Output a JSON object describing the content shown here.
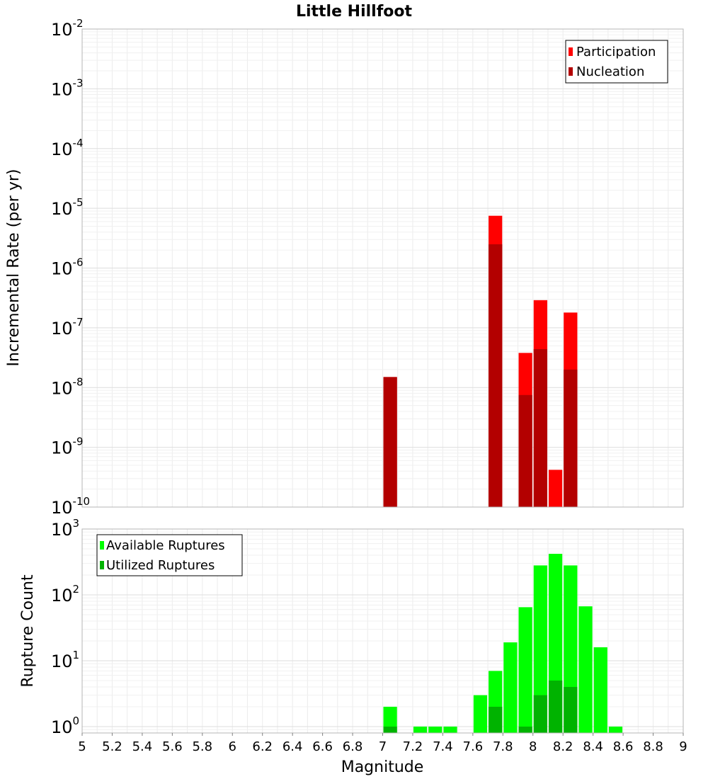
{
  "chart_data": [
    {
      "type": "bar",
      "title": "Little Hillfoot",
      "ylabel": "Incremental Rate (per yr)",
      "yscale": "log",
      "ylim": [
        1e-10,
        0.01
      ],
      "xlim": [
        5,
        9
      ],
      "bar_width": 0.1,
      "y_ticks": [
        {
          "base": "10",
          "exp": "-2"
        },
        {
          "base": "10",
          "exp": "-3"
        },
        {
          "base": "10",
          "exp": "-4"
        },
        {
          "base": "10",
          "exp": "-5"
        },
        {
          "base": "10",
          "exp": "-6"
        },
        {
          "base": "10",
          "exp": "-7"
        },
        {
          "base": "10",
          "exp": "-8"
        },
        {
          "base": "10",
          "exp": "-9"
        },
        {
          "base": "10",
          "exp": "-10"
        }
      ],
      "legend": {
        "position": "top-right"
      },
      "series": [
        {
          "name": "Participation",
          "color": "#ff0000",
          "x": [
            7.05,
            7.75,
            7.95,
            8.05,
            8.15,
            8.25
          ],
          "values": [
            1.5e-08,
            7.5e-06,
            3.8e-08,
            2.9e-07,
            4.2e-10,
            1.8e-07
          ]
        },
        {
          "name": "Nucleation",
          "color": "#b30000",
          "x": [
            7.05,
            7.75,
            7.95,
            8.05,
            8.25
          ],
          "values": [
            1.5e-08,
            2.5e-06,
            7.5e-09,
            4.4e-08,
            2e-08
          ]
        }
      ]
    },
    {
      "type": "bar",
      "xlabel": "Magnitude",
      "ylabel": "Rupture Count",
      "yscale": "log",
      "ylim": [
        0.8,
        1000
      ],
      "xlim": [
        5,
        9
      ],
      "bar_width": 0.1,
      "x_ticks": [
        "5",
        "5.2",
        "5.4",
        "5.6",
        "5.8",
        "6",
        "6.2",
        "6.4",
        "6.6",
        "6.8",
        "7",
        "7.2",
        "7.4",
        "7.6",
        "7.8",
        "8",
        "8.2",
        "8.4",
        "8.6",
        "8.8",
        "9"
      ],
      "y_ticks": [
        {
          "base": "10",
          "exp": "3"
        },
        {
          "base": "10",
          "exp": "2"
        },
        {
          "base": "10",
          "exp": "1"
        },
        {
          "base": "10",
          "exp": "0"
        }
      ],
      "legend": {
        "position": "top-left"
      },
      "series": [
        {
          "name": "Available Ruptures",
          "color": "#00ff00",
          "x": [
            7.05,
            7.25,
            7.35,
            7.45,
            7.65,
            7.75,
            7.85,
            7.95,
            8.05,
            8.15,
            8.25,
            8.35,
            8.45,
            8.55
          ],
          "values": [
            2,
            1,
            1,
            1,
            3,
            7,
            19,
            65,
            280,
            420,
            280,
            67,
            16,
            1
          ]
        },
        {
          "name": "Utilized Ruptures",
          "color": "#00b300",
          "x": [
            7.05,
            7.75,
            7.95,
            8.05,
            8.15,
            8.25
          ],
          "values": [
            1,
            2,
            1,
            3,
            5,
            4
          ]
        }
      ]
    }
  ]
}
